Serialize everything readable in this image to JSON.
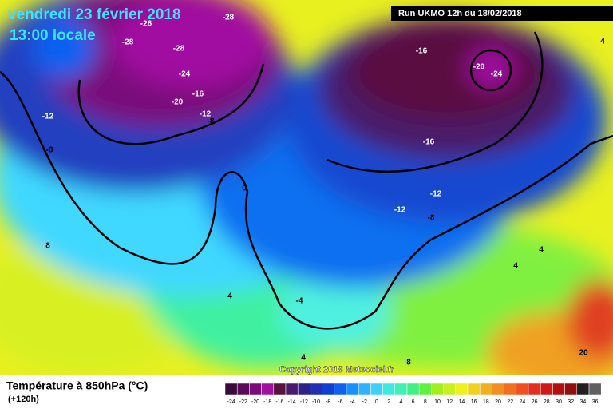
{
  "header": {
    "title": "vendredi 23 février 2018",
    "time": "13:00 locale",
    "run": "Run UKMO 12h du 18/02/2018"
  },
  "map": {
    "contour_labels": [
      -26,
      -28,
      -28,
      -28,
      -24,
      -20,
      -16,
      -12,
      -8,
      -12,
      -8,
      0,
      -16,
      -20,
      -24,
      -16,
      -12,
      -12,
      -8,
      8,
      4,
      -4,
      4,
      4,
      4,
      4,
      8,
      20
    ],
    "copyright": "Copyright 2018 Meteociel.fr"
  },
  "legend": {
    "title": "Température à 850hPa (°C)",
    "lead": "(+120h)",
    "scale": [
      {
        "value": -24,
        "color": "#3a0a3a"
      },
      {
        "value": -22,
        "color": "#5a0a5a"
      },
      {
        "value": -20,
        "color": "#7a0a7a"
      },
      {
        "value": -18,
        "color": "#a010a0"
      },
      {
        "value": -16,
        "color": "#5a1040"
      },
      {
        "value": -14,
        "color": "#4a1a6a"
      },
      {
        "value": -12,
        "color": "#30208a"
      },
      {
        "value": -10,
        "color": "#2030b0"
      },
      {
        "value": -8,
        "color": "#1040d0"
      },
      {
        "value": -6,
        "color": "#1060f0"
      },
      {
        "value": -4,
        "color": "#1a90ff"
      },
      {
        "value": -2,
        "color": "#30b0ff"
      },
      {
        "value": 0,
        "color": "#40d0ff"
      },
      {
        "value": 2,
        "color": "#40e8e0"
      },
      {
        "value": 4,
        "color": "#40f0b0"
      },
      {
        "value": 6,
        "color": "#40f080"
      },
      {
        "value": 8,
        "color": "#60f040"
      },
      {
        "value": 10,
        "color": "#a0f020"
      },
      {
        "value": 12,
        "color": "#c8f020"
      },
      {
        "value": 14,
        "color": "#f0f020"
      },
      {
        "value": 16,
        "color": "#f0d020"
      },
      {
        "value": 18,
        "color": "#f0b020"
      },
      {
        "value": 20,
        "color": "#f09020"
      },
      {
        "value": 22,
        "color": "#f07020"
      },
      {
        "value": 24,
        "color": "#f05020"
      },
      {
        "value": 26,
        "color": "#e03020"
      },
      {
        "value": 28,
        "color": "#d01818"
      },
      {
        "value": 30,
        "color": "#b01010"
      },
      {
        "value": 32,
        "color": "#901010"
      },
      {
        "value": 34,
        "color": "#202020"
      },
      {
        "value": 36,
        "color": "#606060"
      }
    ]
  }
}
